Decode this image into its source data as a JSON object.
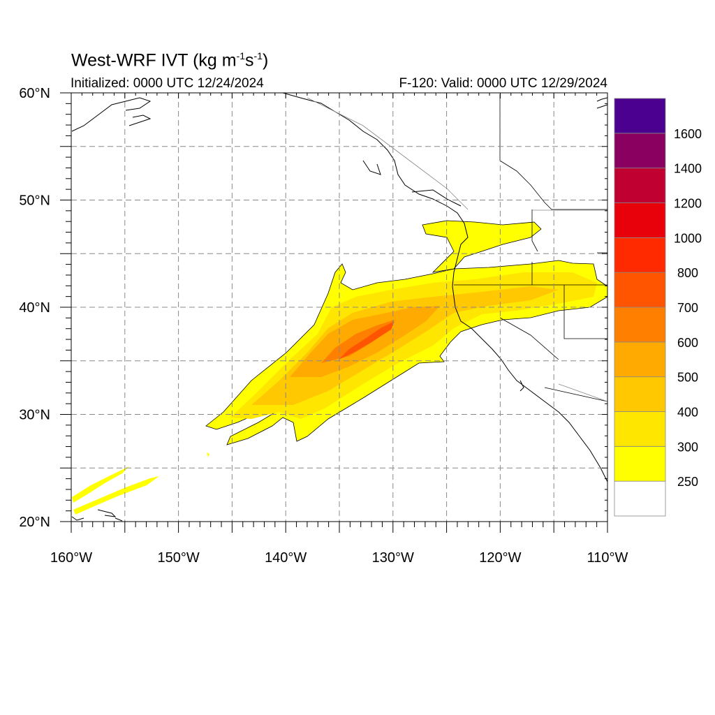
{
  "header": {
    "title_main": "West-WRF IVT (kg m",
    "title_exp1": "-1",
    "title_mid": "s",
    "title_exp2": "-1",
    "title_end": ")",
    "initialized": "Initialized: 0000 UTC 12/24/2024",
    "valid": "F-120: Valid: 0000 UTC 12/29/2024"
  },
  "map": {
    "lon_range": [
      -160,
      -110
    ],
    "lat_range": [
      20,
      60
    ],
    "lat_ticks": [
      {
        "value": 20,
        "label": "20°N"
      },
      {
        "value": 30,
        "label": "30°N"
      },
      {
        "value": 40,
        "label": "40°N"
      },
      {
        "value": 50,
        "label": "50°N"
      },
      {
        "value": 60,
        "label": "60°N"
      }
    ],
    "lon_ticks": [
      {
        "value": -160,
        "label": "160°W"
      },
      {
        "value": -150,
        "label": "150°W"
      },
      {
        "value": -140,
        "label": "140°W"
      },
      {
        "value": -130,
        "label": "130°W"
      },
      {
        "value": -120,
        "label": "120°W"
      },
      {
        "value": -110,
        "label": "110°W"
      }
    ],
    "gridlines": "dashed every 5°"
  },
  "colorbar": {
    "levels": [
      {
        "label": "",
        "color": "#ffffff"
      },
      {
        "label": "250",
        "color": "#ffff00"
      },
      {
        "label": "300",
        "color": "#ffe600"
      },
      {
        "label": "400",
        "color": "#ffc800"
      },
      {
        "label": "500",
        "color": "#ffaa00"
      },
      {
        "label": "600",
        "color": "#ff8000"
      },
      {
        "label": "700",
        "color": "#ff5500"
      },
      {
        "label": "800",
        "color": "#ff2a00"
      },
      {
        "label": "1000",
        "color": "#e8000a"
      },
      {
        "label": "1200",
        "color": "#c00030"
      },
      {
        "label": "1400",
        "color": "#8a0060"
      },
      {
        "label": "1600",
        "color": "#4b0090"
      }
    ]
  }
}
